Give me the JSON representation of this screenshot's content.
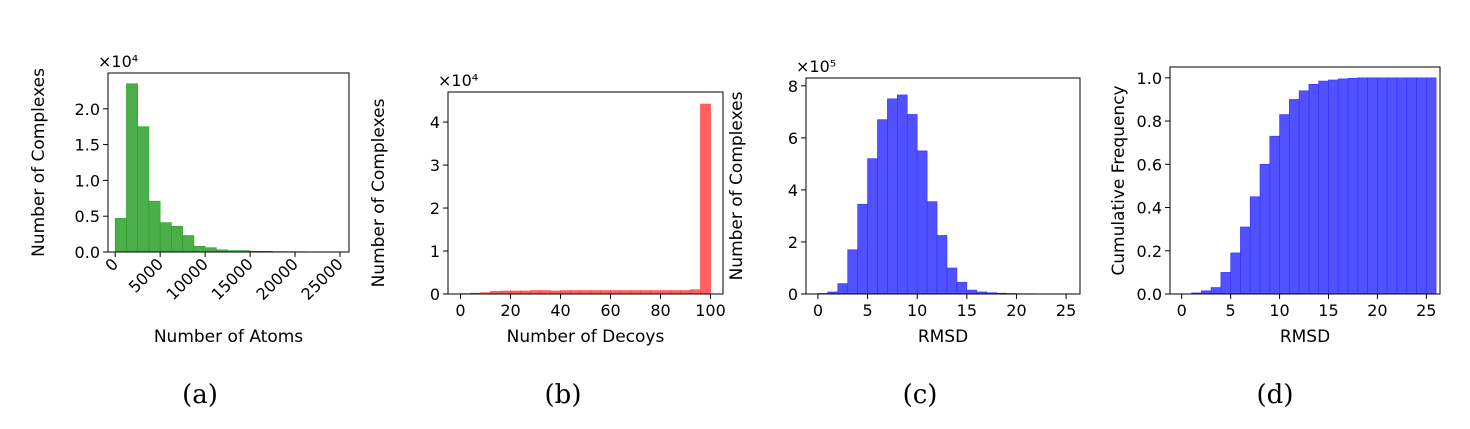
{
  "chart_data": [
    {
      "type": "bar",
      "panel": "(a)",
      "title": "",
      "xlabel": "Number of Atoms",
      "ylabel": "Number of Complexes",
      "y_multiplier": "×10⁴",
      "xlim": [
        -800,
        26000
      ],
      "ylim": [
        0,
        2.5
      ],
      "xticks": [
        0,
        5000,
        10000,
        15000,
        20000,
        25000
      ],
      "xtick_labels": [
        "0",
        "5000",
        "10000",
        "15000",
        "20000",
        "25000"
      ],
      "yticks": [
        0.0,
        0.5,
        1.0,
        1.5,
        2.0
      ],
      "ytick_labels": [
        "0.0",
        "0.5",
        "1.0",
        "1.5",
        "2.0"
      ],
      "color": "#2ca02c",
      "bin_start": 0,
      "bin_width": 1250,
      "values": [
        0.47,
        2.35,
        1.75,
        0.71,
        0.41,
        0.36,
        0.23,
        0.08,
        0.06,
        0.03,
        0.02,
        0.02,
        0.01,
        0.01,
        0.005,
        0.005,
        0.004,
        0.003,
        0.003,
        0.002
      ]
    },
    {
      "type": "bar",
      "panel": "(b)",
      "title": "",
      "xlabel": "Number of Decoys",
      "ylabel": "Number of Complexes",
      "y_multiplier": "×10⁴",
      "xlim": [
        -5,
        105
      ],
      "ylim": [
        0,
        4.7
      ],
      "xticks": [
        0,
        20,
        40,
        60,
        80,
        100
      ],
      "xtick_labels": [
        "0",
        "20",
        "40",
        "60",
        "80",
        "100"
      ],
      "yticks": [
        0,
        1,
        2,
        3,
        4
      ],
      "ytick_labels": [
        "0",
        "1",
        "2",
        "3",
        "4"
      ],
      "color": "#ff4444",
      "bin_start": 0,
      "bin_width": 4,
      "values": [
        0.01,
        0.02,
        0.03,
        0.06,
        0.07,
        0.07,
        0.07,
        0.08,
        0.08,
        0.07,
        0.08,
        0.08,
        0.08,
        0.08,
        0.08,
        0.08,
        0.08,
        0.08,
        0.08,
        0.08,
        0.08,
        0.08,
        0.08,
        0.1,
        4.42
      ]
    },
    {
      "type": "bar",
      "panel": "(c)",
      "title": "",
      "xlabel": "RMSD",
      "ylabel": "Number of Complexes",
      "y_multiplier": "×10⁵",
      "xlim": [
        -1.2,
        26.4
      ],
      "ylim": [
        0,
        8.3
      ],
      "xticks": [
        0,
        5,
        10,
        15,
        20,
        25
      ],
      "xtick_labels": [
        "0",
        "5",
        "10",
        "15",
        "20",
        "25"
      ],
      "yticks": [
        0,
        2,
        4,
        6,
        8
      ],
      "ytick_labels": [
        "0",
        "2",
        "4",
        "6",
        "8"
      ],
      "color": "#3333ff",
      "bin_start": 0,
      "bin_width": 1,
      "values": [
        0.02,
        0.08,
        0.4,
        1.7,
        3.45,
        5.2,
        6.7,
        7.5,
        7.65,
        6.9,
        5.5,
        3.55,
        2.25,
        1.0,
        0.45,
        0.15,
        0.08,
        0.05,
        0.03,
        0.02,
        0.01,
        0.01,
        0.005,
        0.005,
        0.003,
        0.002
      ]
    },
    {
      "type": "bar",
      "panel": "(d)",
      "title": "",
      "xlabel": "RMSD",
      "ylabel": "Cumulative Frequency",
      "y_multiplier": "",
      "xlim": [
        -1.2,
        26.4
      ],
      "ylim": [
        0,
        1.05
      ],
      "xticks": [
        0,
        5,
        10,
        15,
        20,
        25
      ],
      "xtick_labels": [
        "0",
        "5",
        "10",
        "15",
        "20",
        "25"
      ],
      "yticks": [
        0.0,
        0.2,
        0.4,
        0.6,
        0.8,
        1.0
      ],
      "ytick_labels": [
        "0.0",
        "0.2",
        "0.4",
        "0.6",
        "0.8",
        "1.0"
      ],
      "color": "#3333ff",
      "bin_start": 0,
      "bin_width": 1,
      "values": [
        0.0,
        0.005,
        0.015,
        0.03,
        0.1,
        0.19,
        0.31,
        0.45,
        0.6,
        0.73,
        0.83,
        0.9,
        0.94,
        0.97,
        0.985,
        0.99,
        0.995,
        0.998,
        1.0,
        1.0,
        1.0,
        1.0,
        1.0,
        1.0,
        1.0,
        1.0
      ]
    }
  ]
}
